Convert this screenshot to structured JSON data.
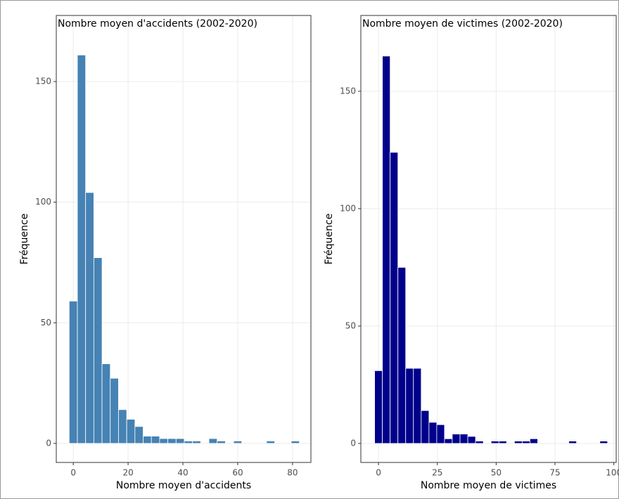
{
  "chart_data": [
    {
      "type": "histogram",
      "title": "Nombre moyen d'accidents (2002-2020)",
      "x_label": "Nombre moyen d'accidents",
      "y_label": "Fréquence",
      "bins": [
        -1.5,
        1.5,
        4.5,
        7.5,
        10.5,
        13.5,
        16.5,
        19.5,
        22.5,
        25.5,
        28.5,
        31.5,
        34.5,
        37.5,
        40.5,
        43.5,
        46.5,
        49.5,
        52.5,
        55.5,
        58.5,
        61.5,
        64.5,
        67.5,
        70.5,
        73.5,
        76.5,
        79.5,
        82.5
      ],
      "values": [
        59,
        161,
        104,
        77,
        33,
        27,
        14,
        10,
        7,
        3,
        3,
        2,
        2,
        2,
        1,
        1,
        0,
        2,
        1,
        0,
        1,
        0,
        0,
        0,
        1,
        0,
        0,
        1
      ],
      "color": "#4682b4",
      "xlim": [
        -6.2,
        86.7
      ],
      "ylim": [
        -7.9,
        177.4
      ],
      "xticks": [
        0,
        20,
        40,
        60,
        80
      ],
      "yticks": [
        0,
        50,
        100,
        150
      ],
      "grid": true
    },
    {
      "type": "histogram",
      "title": "Nombre moyen de victimes (2002-2020)",
      "x_label": "Nombre moyen de victimes",
      "y_label": "Fréquence",
      "bins": [
        -1.65,
        1.65,
        4.95,
        8.25,
        11.55,
        14.85,
        18.15,
        21.45,
        24.75,
        28.05,
        31.35,
        34.65,
        37.95,
        41.25,
        44.55,
        47.85,
        51.15,
        54.45,
        57.75,
        61.05,
        64.35,
        67.65,
        70.95,
        74.25,
        77.55,
        80.85,
        84.15,
        87.45,
        90.75,
        94.05,
        97.35
      ],
      "values": [
        31,
        165,
        124,
        75,
        32,
        32,
        14,
        9,
        8,
        2,
        4,
        4,
        3,
        1,
        0,
        1,
        1,
        0,
        1,
        1,
        2,
        0,
        0,
        0,
        0,
        1,
        0,
        0,
        0,
        1
      ],
      "color": "#00008b",
      "xlim": [
        -7.5,
        101
      ],
      "ylim": [
        -8.1,
        182.3
      ],
      "xticks": [
        0,
        25,
        50,
        75,
        100
      ],
      "yticks": [
        0,
        50,
        100,
        150
      ],
      "grid": true
    }
  ]
}
